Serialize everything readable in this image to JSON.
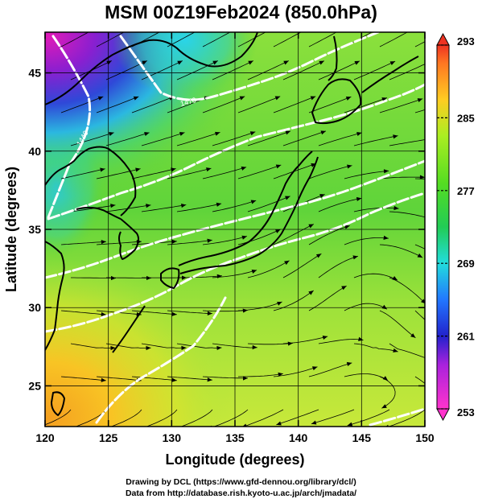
{
  "title": "MSM 00Z19Feb2024 (850.0hPa)",
  "x_axis": {
    "label": "Longitude (degrees)",
    "ticks": [
      "120",
      "125",
      "130",
      "135",
      "140",
      "145",
      "150"
    ]
  },
  "y_axis": {
    "label": "Latitude  (degrees)",
    "ticks": [
      "25",
      "30",
      "35",
      "40",
      "45"
    ]
  },
  "colorbar": {
    "ticks": [
      "293",
      "285",
      "277",
      "269",
      "261",
      "253"
    ],
    "min": 253,
    "max": 293
  },
  "credits": {
    "line1": "Drawing by DCL (https://www.gfd-dennou.org/library/dcl/)",
    "line2": "Data from http://database.rish.kyoto-u.ac.jp/arch/jmadata/"
  },
  "contour_labels": [
    "1440",
    "1470"
  ],
  "chart_data": {
    "type": "heatmap",
    "title": "MSM 00Z19Feb2024 (850.0hPa)",
    "xlabel": "Longitude (degrees)",
    "ylabel": "Latitude  (degrees)",
    "xlim": [
      120,
      150
    ],
    "ylim": [
      22.4,
      47.6
    ],
    "colorbar_range": [
      253,
      293
    ],
    "overlays": [
      "streamlines (wind)",
      "white contours (geopotential height)",
      "black coastlines"
    ]
  }
}
